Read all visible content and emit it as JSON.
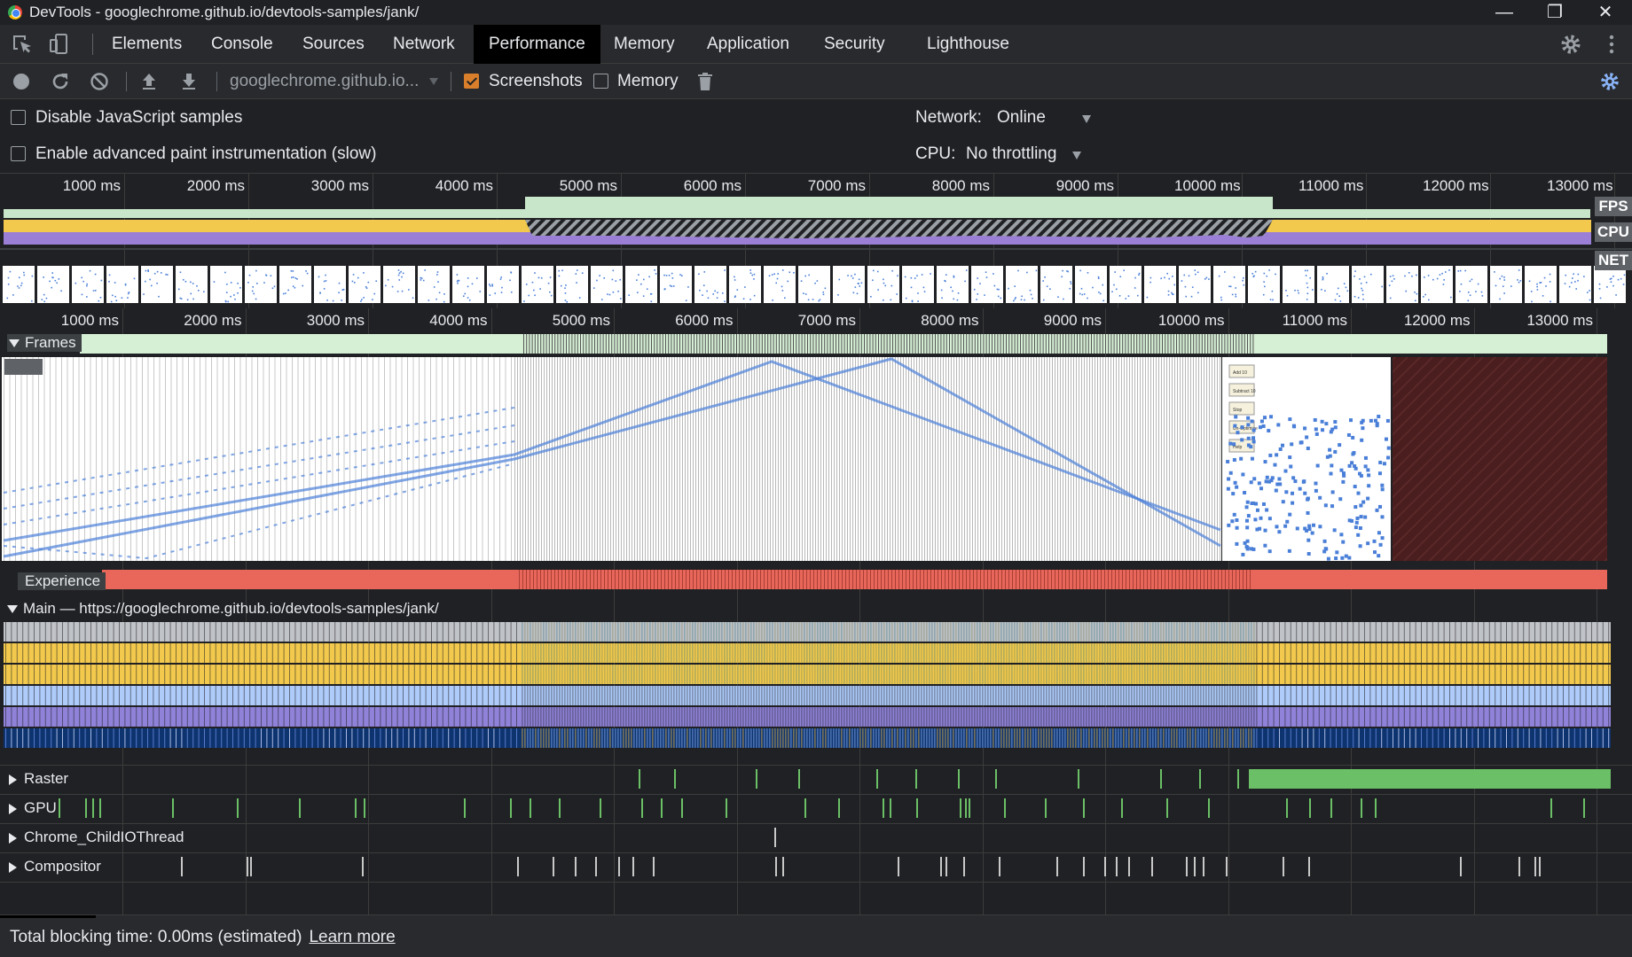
{
  "window": {
    "title": "DevTools - googlechrome.github.io/devtools-samples/jank/"
  },
  "tabs": [
    {
      "label": "Elements"
    },
    {
      "label": "Console"
    },
    {
      "label": "Sources"
    },
    {
      "label": "Network"
    },
    {
      "label": "Performance",
      "active": true
    },
    {
      "label": "Memory"
    },
    {
      "label": "Application"
    },
    {
      "label": "Security"
    },
    {
      "label": "Lighthouse"
    }
  ],
  "toolbar": {
    "url_select": "googlechrome.github.io...",
    "screenshots_label": "Screenshots",
    "screenshots_checked": true,
    "memory_label": "Memory",
    "memory_checked": false
  },
  "settings": {
    "disable_js_samples": "Disable JavaScript samples",
    "advanced_paint": "Enable advanced paint instrumentation (slow)",
    "network_label": "Network:",
    "network_value": "Online",
    "cpu_label": "CPU:",
    "cpu_value": "No throttling"
  },
  "overview": {
    "ticks": [
      "1000 ms",
      "2000 ms",
      "3000 ms",
      "4000 ms",
      "5000 ms",
      "6000 ms",
      "7000 ms",
      "8000 ms",
      "9000 ms",
      "10000 ms",
      "11000 ms",
      "12000 ms",
      "13000 ms"
    ],
    "labels": {
      "fps": "FPS",
      "cpu": "CPU",
      "net": "NET"
    }
  },
  "timeline": {
    "ticks": [
      "1000 ms",
      "2000 ms",
      "3000 ms",
      "4000 ms",
      "5000 ms",
      "6000 ms",
      "7000 ms",
      "8000 ms",
      "9000 ms",
      "10000 ms",
      "11000 ms",
      "12000 ms",
      "13000 ms"
    ],
    "frames_label": "Frames",
    "experience_label": "Experience",
    "main_label": "Main — https://googlechrome.github.io/devtools-samples/jank/",
    "tracks": [
      {
        "label": "Raster"
      },
      {
        "label": "GPU"
      },
      {
        "label": "Chrome_ChildIOThread"
      },
      {
        "label": "Compositor"
      }
    ],
    "screenshot_buttons": [
      "Add 10",
      "Subtract 10",
      "Stop",
      "Un-Optimize",
      "Help"
    ]
  },
  "status": {
    "text": "Total blocking time: 0.00ms (estimated)",
    "link": "Learn more"
  },
  "colors": {
    "fps": "#c8e6c9",
    "cpu_yellow": "#f2c94c",
    "cpu_purple": "#9b7fd6",
    "experience": "#e8675a",
    "main_yellow": "#f2c94c",
    "main_blue": "#aecbfa",
    "main_purple": "#8f82d8",
    "raster": "#6bbf66",
    "accent": "#8ab4f8"
  }
}
